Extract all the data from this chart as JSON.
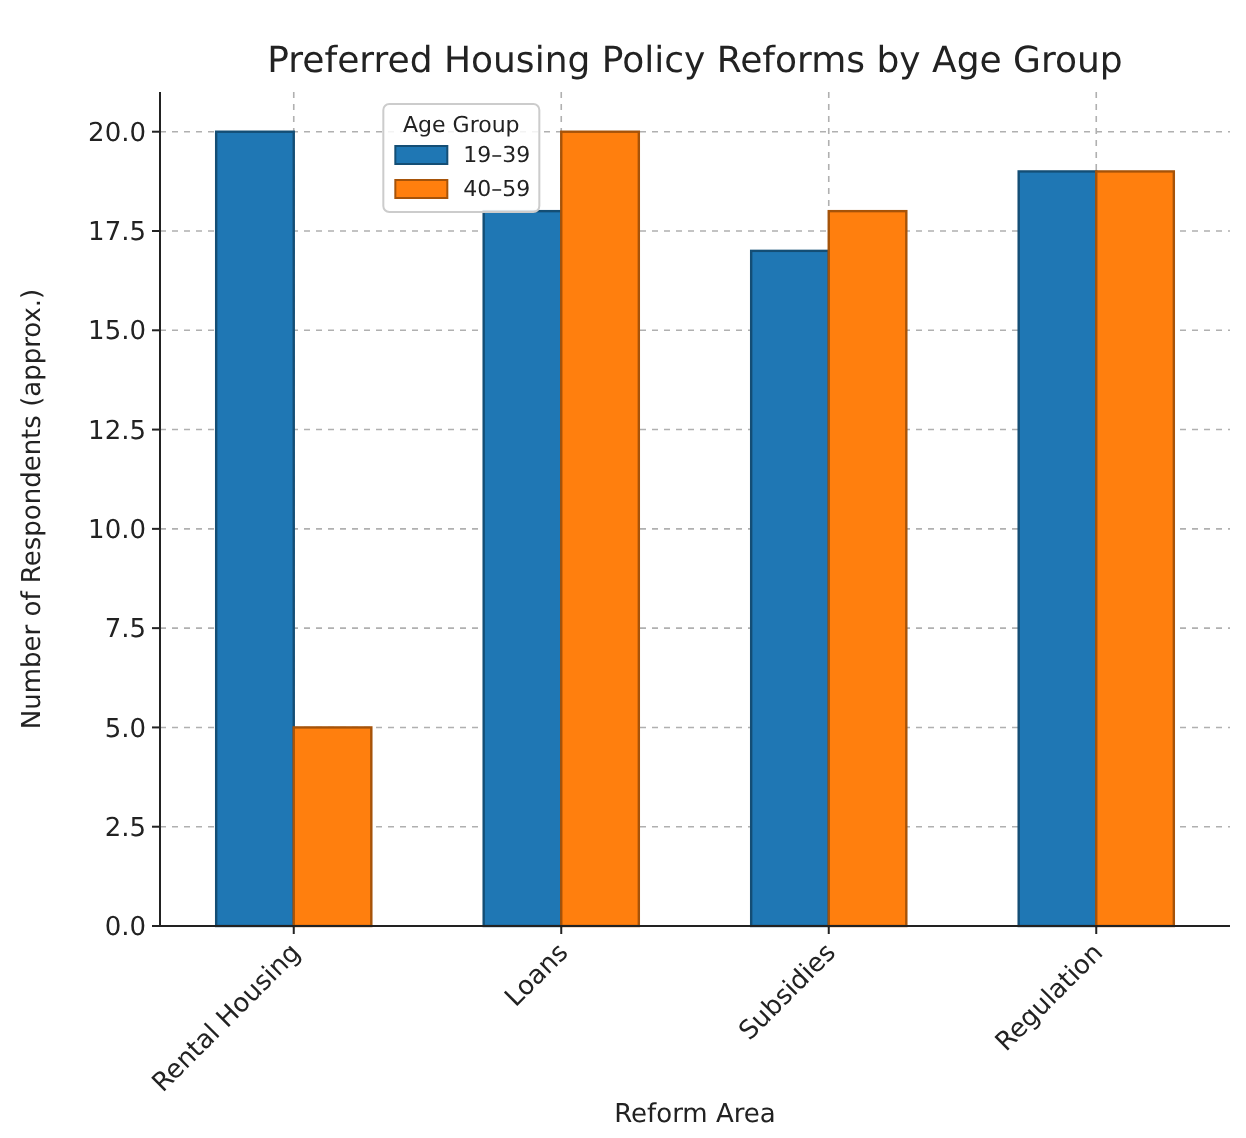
{
  "chart_data": {
    "type": "bar",
    "title": "Preferred Housing Policy Reforms by Age Group",
    "xlabel": "Reform Area",
    "ylabel": "Number of Respondents (approx.)",
    "legend_title": "Age Group",
    "categories": [
      "Rental Housing",
      "Loans",
      "Subsidies",
      "Regulation"
    ],
    "series": [
      {
        "name": "19–39",
        "color": "#1f77b4",
        "values": [
          20,
          18,
          17,
          19
        ]
      },
      {
        "name": "40–59",
        "color": "#ff7f0e",
        "values": [
          5,
          20,
          18,
          19
        ]
      }
    ],
    "ylim": [
      0,
      21
    ],
    "yticks": [
      {
        "value": 0,
        "label": "0.0"
      },
      {
        "value": 2.5,
        "label": "2.5"
      },
      {
        "value": 5,
        "label": "5.0"
      },
      {
        "value": 7.5,
        "label": "7.5"
      },
      {
        "value": 10,
        "label": "10.0"
      },
      {
        "value": 12.5,
        "label": "12.5"
      },
      {
        "value": 15,
        "label": "15.0"
      },
      {
        "value": 17.5,
        "label": "17.5"
      },
      {
        "value": 20,
        "label": "20.0"
      }
    ],
    "grid": true,
    "legend": "top left"
  }
}
